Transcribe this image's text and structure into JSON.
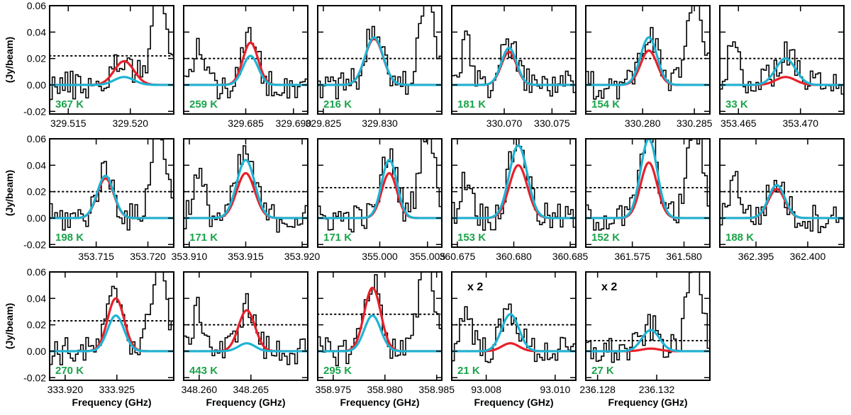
{
  "chart_data": {
    "type": "line",
    "y_axis_label": "(Jy/beam)",
    "x_axis_label": "Frequency (GHz)",
    "ylim": [
      -0.022,
      0.06
    ],
    "yticks": [
      "0.06",
      "0.04",
      "0.02",
      "0.00",
      "-0.02"
    ],
    "ytick_values": [
      0.06,
      0.04,
      0.02,
      0.0,
      -0.02
    ],
    "series_colors": {
      "observed": "#000000",
      "model_red": "#e8202a",
      "model_blue": "#1eb4d4",
      "threshold": "#000000"
    },
    "panels": [
      {
        "id": "p1",
        "temperature": "367 K",
        "x_ticks": [
          "329.515",
          "329.520"
        ],
        "tick_values": [
          329.515,
          329.52
        ],
        "xlim": [
          329.5135,
          329.5235
        ],
        "line_center": 329.5195,
        "red_peak": 0.018,
        "blue_peak": 0.006,
        "width": 0.0008,
        "threshold": 0.022,
        "scale": ""
      },
      {
        "id": "p2",
        "temperature": "259 K",
        "x_ticks": [
          "329.685",
          "329.690"
        ],
        "tick_values": [
          329.685,
          329.69
        ],
        "xlim": [
          329.6785,
          329.6915
        ],
        "line_center": 329.6855,
        "red_peak": 0.032,
        "blue_peak": 0.022,
        "width": 0.0008,
        "threshold": 0.02,
        "scale": ""
      },
      {
        "id": "p3",
        "temperature": "216 K",
        "x_ticks": [
          "329.825",
          "329.830"
        ],
        "tick_values": [
          329.825,
          329.83
        ],
        "xlim": [
          329.8245,
          329.8355
        ],
        "line_center": 329.8295,
        "red_peak": 0.035,
        "blue_peak": 0.036,
        "width": 0.0008,
        "threshold": 0.02,
        "scale": ""
      },
      {
        "id": "p4",
        "temperature": "181 K",
        "x_ticks": [
          "330.070",
          "330.075"
        ],
        "tick_values": [
          330.07,
          330.075
        ],
        "xlim": [
          330.0645,
          330.0775
        ],
        "line_center": 330.0705,
        "red_peak": 0.025,
        "blue_peak": 0.028,
        "width": 0.0008,
        "threshold": 0.02,
        "scale": ""
      },
      {
        "id": "p5",
        "temperature": "154 K",
        "x_ticks": [
          "330.280",
          "330.285"
        ],
        "tick_values": [
          330.28,
          330.285
        ],
        "xlim": [
          330.2745,
          330.2865
        ],
        "line_center": 330.2806,
        "red_peak": 0.026,
        "blue_peak": 0.036,
        "width": 0.0008,
        "threshold": 0.02,
        "scale": ""
      },
      {
        "id": "p6",
        "temperature": "33 K",
        "x_ticks": [
          "353.465",
          "353.470"
        ],
        "tick_values": [
          353.465,
          353.47
        ],
        "xlim": [
          353.4635,
          353.4735
        ],
        "line_center": 353.4688,
        "red_peak": 0.006,
        "blue_peak": 0.02,
        "width": 0.0008,
        "threshold": 0.02,
        "scale": ""
      },
      {
        "id": "p7",
        "temperature": "198 K",
        "x_ticks": [
          "353.715",
          "353.720"
        ],
        "tick_values": [
          353.715,
          353.72
        ],
        "xlim": [
          353.7105,
          353.7225
        ],
        "line_center": 353.7159,
        "red_peak": 0.03,
        "blue_peak": 0.032,
        "width": 0.0008,
        "threshold": 0.02,
        "scale": ""
      },
      {
        "id": "p8",
        "temperature": "171 K",
        "x_ticks": [
          "353.910",
          "353.915",
          "353.920"
        ],
        "tick_values": [
          353.91,
          353.915,
          353.92
        ],
        "xlim": [
          353.9095,
          353.9205
        ],
        "line_center": 353.915,
        "red_peak": 0.034,
        "blue_peak": 0.044,
        "width": 0.0008,
        "threshold": 0.02,
        "scale": ""
      },
      {
        "id": "p9",
        "temperature": "171 K",
        "x_ticks": [
          "355.000",
          "355.005"
        ],
        "tick_values": [
          355.0,
          355.005
        ],
        "xlim": [
          354.9935,
          355.0065
        ],
        "line_center": 355.001,
        "red_peak": 0.034,
        "blue_peak": 0.044,
        "width": 0.0008,
        "threshold": 0.023,
        "scale": ""
      },
      {
        "id": "p10",
        "temperature": "153 K",
        "x_ticks": [
          "360.675",
          "360.680",
          "360.685"
        ],
        "tick_values": [
          360.675,
          360.68,
          360.685
        ],
        "xlim": [
          360.6745,
          360.6855
        ],
        "line_center": 360.6804,
        "red_peak": 0.04,
        "blue_peak": 0.055,
        "width": 0.0008,
        "threshold": 0.023,
        "scale": ""
      },
      {
        "id": "p11",
        "temperature": "152 K",
        "x_ticks": [
          "361.575",
          "361.580"
        ],
        "tick_values": [
          361.575,
          361.58
        ],
        "xlim": [
          361.5705,
          361.5825
        ],
        "line_center": 361.5766,
        "red_peak": 0.042,
        "blue_peak": 0.06,
        "width": 0.0008,
        "threshold": 0.023,
        "scale": ""
      },
      {
        "id": "p12",
        "temperature": "188 K",
        "x_ticks": [
          "362.395",
          "362.400"
        ],
        "tick_values": [
          362.395,
          362.4
        ],
        "xlim": [
          362.3915,
          362.4035
        ],
        "line_center": 362.397,
        "red_peak": 0.022,
        "blue_peak": 0.025,
        "width": 0.0008,
        "threshold": 0.02,
        "scale": ""
      },
      {
        "id": "p13",
        "temperature": "270 K",
        "x_ticks": [
          "333.920",
          "333.925"
        ],
        "tick_values": [
          333.92,
          333.925
        ],
        "xlim": [
          333.9185,
          333.9305
        ],
        "line_center": 333.9249,
        "red_peak": 0.04,
        "blue_peak": 0.027,
        "width": 0.0008,
        "threshold": 0.023,
        "scale": ""
      },
      {
        "id": "p14",
        "temperature": "443 K",
        "x_ticks": [
          "348.260",
          "348.265"
        ],
        "tick_values": [
          348.26,
          348.265
        ],
        "xlim": [
          348.2585,
          348.2705
        ],
        "line_center": 348.2646,
        "red_peak": 0.031,
        "blue_peak": 0.006,
        "width": 0.0008,
        "threshold": 0.02,
        "scale": ""
      },
      {
        "id": "p15",
        "temperature": "295 K",
        "x_ticks": [
          "358.975",
          "358.980",
          "358.985"
        ],
        "tick_values": [
          358.975,
          358.98,
          358.985
        ],
        "xlim": [
          358.9735,
          358.9855
        ],
        "line_center": 358.9788,
        "red_peak": 0.048,
        "blue_peak": 0.027,
        "width": 0.0008,
        "threshold": 0.028,
        "scale": ""
      },
      {
        "id": "p16",
        "temperature": "21 K",
        "x_ticks": [
          "93.008",
          "93.010"
        ],
        "tick_values": [
          93.008,
          93.01
        ],
        "xlim": [
          93.007,
          93.0106
        ],
        "line_center": 93.0087,
        "red_peak": 0.006,
        "blue_peak": 0.028,
        "width": 0.00025,
        "threshold": 0.02,
        "scale": "x 2"
      },
      {
        "id": "p17",
        "temperature": "27 K",
        "x_ticks": [
          "236.128",
          "236.132"
        ],
        "tick_values": [
          236.128,
          236.132
        ],
        "xlim": [
          236.1272,
          236.1356
        ],
        "line_center": 236.1316,
        "red_peak": 0.002,
        "blue_peak": 0.016,
        "width": 0.0006,
        "threshold": 0.008,
        "scale": "x 2"
      }
    ]
  }
}
